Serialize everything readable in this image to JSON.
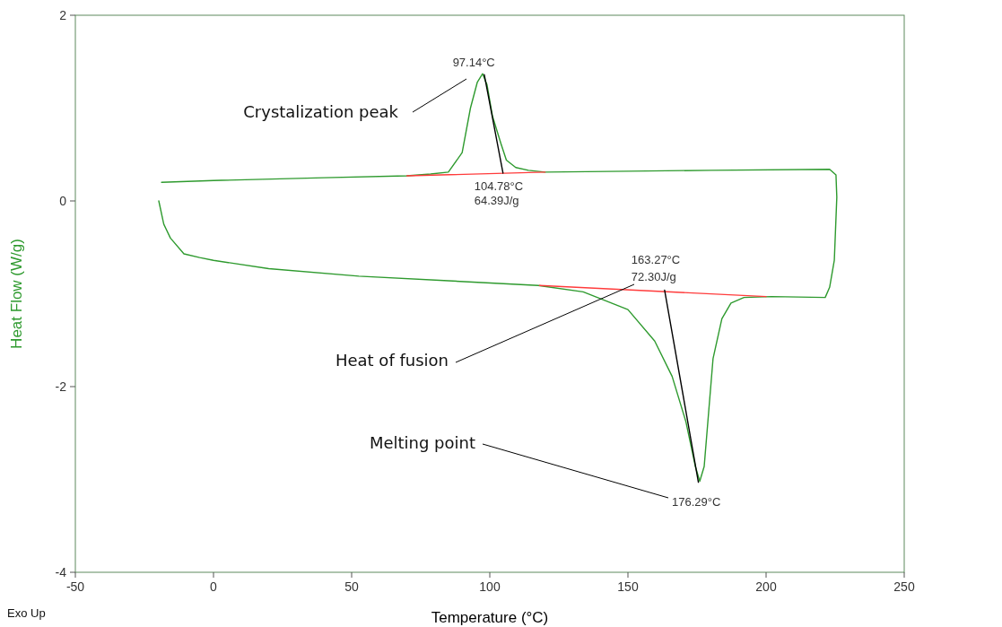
{
  "chart_data": {
    "type": "line",
    "xlabel": "Temperature (°C)",
    "ylabel": "Heat Flow (W/g)",
    "xlim": [
      -50,
      250
    ],
    "ylim": [
      -4,
      2
    ],
    "xticks": [
      -50,
      0,
      50,
      100,
      150,
      200,
      250
    ],
    "yticks": [
      -4,
      -2,
      0,
      2
    ],
    "grid": false,
    "marker": "none",
    "line_style": "solid",
    "series": [
      {
        "color": "#2e9a2e",
        "x": [
          -19.8,
          -18,
          -15.6,
          -10.7,
          -5,
          0,
          20,
          52.6,
          85,
          117.5,
          133.8,
          150,
          159.7,
          166,
          171,
          174.4,
          176,
          177.6,
          179.2,
          180.8,
          184,
          187.3,
          192,
          202,
          221.4,
          223,
          224.7,
          225.6,
          225.3,
          223,
          180,
          150,
          120,
          114,
          109.4,
          106,
          104,
          101,
          99,
          97.4,
          95.5,
          93,
          90,
          85,
          78.6,
          70,
          40,
          0,
          -18.8
        ],
        "values": [
          0,
          -0.25,
          -0.4,
          -0.57,
          -0.61,
          -0.64,
          -0.73,
          -0.81,
          -0.86,
          -0.91,
          -0.98,
          -1.17,
          -1.51,
          -1.89,
          -2.38,
          -2.86,
          -3.02,
          -2.86,
          -2.28,
          -1.7,
          -1.27,
          -1.1,
          -1.04,
          -1.03,
          -1.04,
          -0.93,
          -0.64,
          0.04,
          0.28,
          0.34,
          0.33,
          0.32,
          0.31,
          0.33,
          0.36,
          0.44,
          0.62,
          0.91,
          1.25,
          1.37,
          1.28,
          1,
          0.52,
          0.31,
          0.29,
          0.27,
          0.25,
          0.22,
          0.2
        ]
      },
      {
        "color": "#ff3b3b",
        "x": [
          70,
          120
        ],
        "values": [
          0.27,
          0.31
        ]
      },
      {
        "color": "#ff3b3b",
        "x": [
          118,
          200
        ],
        "values": [
          -0.91,
          -1.03
        ]
      },
      {
        "color": "#000000",
        "x": [
          98,
          104.78
        ],
        "values": [
          1.36,
          0.3
        ]
      },
      {
        "color": "#000000",
        "x": [
          163.27,
          175.5
        ],
        "values": [
          -0.96,
          -3.03
        ]
      }
    ],
    "annotations": [
      {
        "text": "97.14°C",
        "x": 97.14,
        "y": 1.37
      },
      "Crystalization peak",
      {
        "text": "104.78°C",
        "x": 104.78,
        "y": 0.3
      },
      {
        "text": "64.39J/g",
        "x": 104.78,
        "y": 0.3
      },
      {
        "text": "163.27°C",
        "x": 163.27,
        "y": -0.96
      },
      {
        "text": "72.30J/g",
        "x": 163.27,
        "y": -0.96
      },
      "Heat of fusion",
      "Melting point",
      {
        "text": "176.29°C",
        "x": 176.29,
        "y": -3.05
      },
      "Exo Up"
    ]
  }
}
